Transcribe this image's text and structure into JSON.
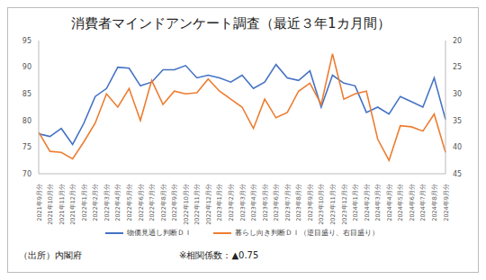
{
  "chart_data": {
    "type": "line",
    "title": "消費者マインドアンケート調査（最近３年1カ月間）",
    "categories": [
      "2021年9月分",
      "2021年10月分",
      "2021年11月分",
      "2021年12月分",
      "2022年1月分",
      "2022年2月分",
      "2022年3月分",
      "2022年4月分",
      "2022年5月分",
      "2022年6月分",
      "2022年7月分",
      "2022年8月分",
      "2022年9月分",
      "2022年10月分",
      "2022年11月分",
      "2022年12月分",
      "2023年1月分",
      "2023年2月分",
      "2023年3月分",
      "2023年4月分",
      "2023年5月分",
      "2023年6月分",
      "2023年7月分",
      "2023年8月分",
      "2023年9月分",
      "2023年10月分",
      "2023年11月分",
      "2023年12月分",
      "2024年1月分",
      "2024年2月分",
      "2024年3月分",
      "2024年4月分",
      "2024年5月分",
      "2024年6月分",
      "2024年7月分",
      "2024年8月分",
      "2024年9月分"
    ],
    "series": [
      {
        "name": "物価見通し判断ＤＩ",
        "color": "#4472c4",
        "values": [
          77.5,
          77,
          78.5,
          75.5,
          79.5,
          84.5,
          86,
          90,
          89.8,
          86.5,
          87.2,
          89.5,
          89.5,
          90.3,
          88,
          88.5,
          88,
          87.2,
          88.5,
          86,
          87.2,
          90.5,
          88,
          87.5,
          89.3,
          82.5,
          88.5,
          87,
          86.5,
          81.5,
          82.5,
          81.2,
          84.5,
          83.5,
          82.5,
          88,
          80.2
        ]
      },
      {
        "name": "暮らし向き判断ＤＩ（逆目盛り、右目盛り）",
        "color": "#ed7d31",
        "axis": "y2",
        "values": [
          37.2,
          40.8,
          41,
          42.2,
          39,
          35.5,
          30,
          32.5,
          29,
          35,
          27.5,
          32,
          29.5,
          30,
          29.8,
          27.2,
          29.5,
          31,
          32.5,
          36.5,
          31,
          34.5,
          33.5,
          29.5,
          28,
          32,
          22.5,
          31,
          30,
          29.5,
          38.5,
          42.5,
          36,
          36.2,
          37,
          33.8,
          41
        ]
      }
    ],
    "ylim": [
      70,
      95
    ],
    "yticks": [
      70,
      75,
      80,
      85,
      90,
      95
    ],
    "y2lim": [
      45,
      20
    ],
    "y2ticks": [
      20,
      25,
      30,
      35,
      40,
      45
    ],
    "grid": false,
    "source": "（出所）内閣府",
    "note": "※相関係数：▲0.75"
  }
}
